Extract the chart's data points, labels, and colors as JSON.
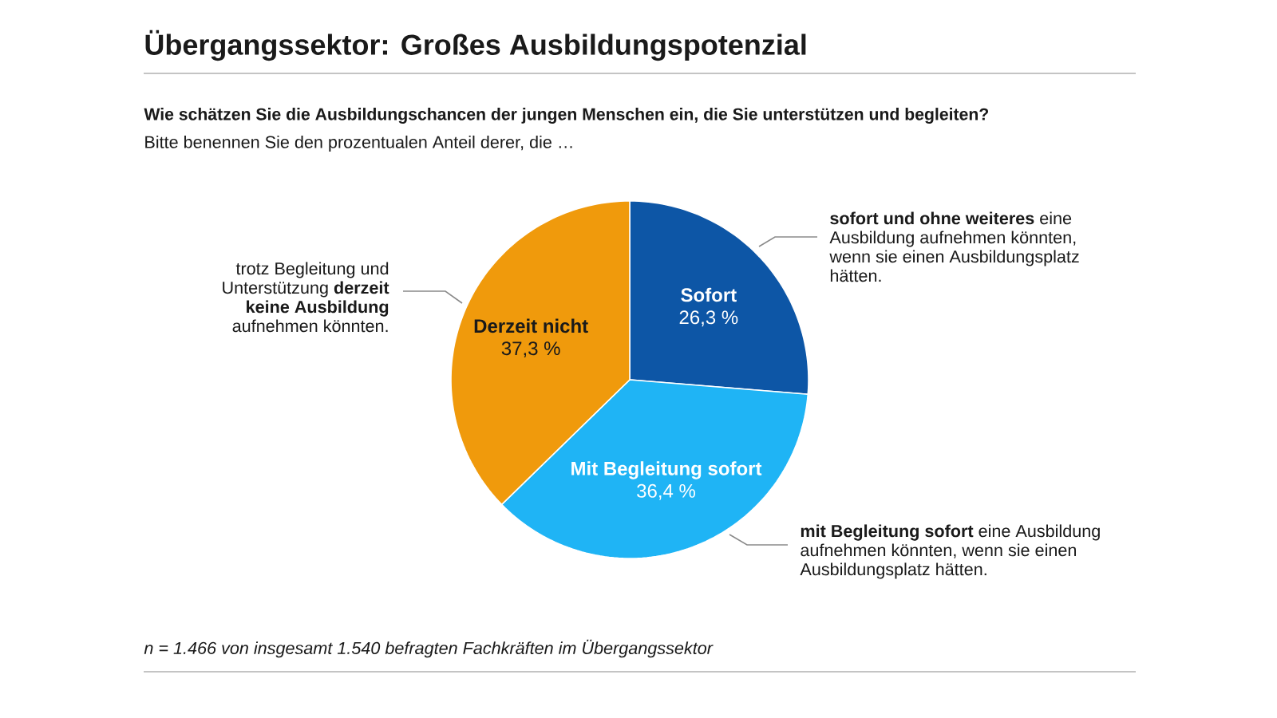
{
  "chart_data": {
    "type": "pie",
    "title": "Übergangssektor: Großes Ausbildungspotenzial",
    "subtitle": "Wie schätzen Sie die Ausbildungschancen der jungen Menschen ein, die Sie unterstützen und begleiten?",
    "categories": [
      "Sofort",
      "Mit Begleitung sofort",
      "Derzeit nicht"
    ],
    "values": [
      26.3,
      36.4,
      37.3
    ],
    "colors": [
      "#0d56a6",
      "#1fb4f5",
      "#f09a0c"
    ],
    "value_labels": [
      "26,3 %",
      "36,4 %",
      "37,3 %"
    ],
    "annotations": [
      "Bitte benennen Sie den prozentualen Anteil derer, die …",
      "**sofort und ohne weiteres** eine Ausbildung aufnehmen könnten, wenn sie einen Ausbildungsplatz hätten.",
      "**mit Begleitung sofort** eine Ausbildung aufnehmen könnten, wenn sie einen Ausbildungsplatz hätten.",
      "trotz Begleitung und Unterstützung **derzeit keine Ausbildung** aufnehmen könnten.",
      "n = 1.466 von insgesamt 1.540 befragten Fachkräften im Übergangssektor"
    ]
  }
}
